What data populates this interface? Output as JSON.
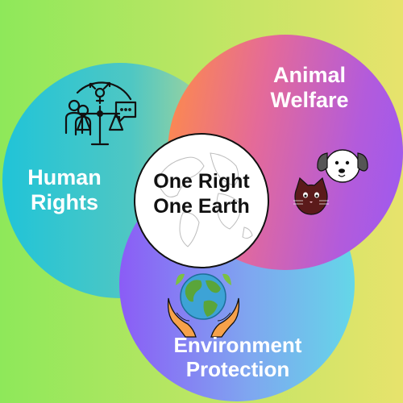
{
  "center": {
    "line1": "One Right",
    "line2": "One Earth"
  },
  "circles": {
    "human": {
      "line1": "Human",
      "line2": "Rights"
    },
    "animal": {
      "line1": "Animal",
      "line2": "Welfare"
    },
    "environment": {
      "line1": "Environment",
      "line2": "Protection"
    }
  },
  "colors": {
    "background": [
      "#8ee85a",
      "#e7e36c"
    ],
    "human_circle": [
      "#20c4d8",
      "#c8d98a"
    ],
    "animal_circle": [
      "#ff8d45",
      "#9b5af2"
    ],
    "environment_circle": [
      "#8b5cf6",
      "#64d7e8"
    ],
    "text": "#ffffff"
  },
  "icons": [
    "justice-scale-icon",
    "dog-icon",
    "cat-icon",
    "earth-hands-icon",
    "world-map-icon"
  ]
}
